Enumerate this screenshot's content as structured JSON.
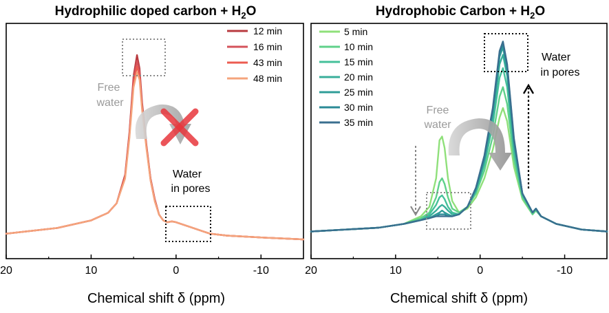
{
  "chart_data": [
    {
      "type": "line",
      "title_main": "Hydrophilic doped carbon + H",
      "title_sub": "2",
      "title_tail": "O",
      "xlabel": "Chemical shift δ (ppm)",
      "xlim": [
        20,
        -15
      ],
      "xticks": [
        20,
        10,
        0,
        -10
      ],
      "xtick_labels": [
        "20",
        "10",
        "0",
        "-10"
      ],
      "ylim": [
        0,
        1.05
      ],
      "series": [
        {
          "name": "12 min",
          "color": "#b83a3f",
          "x": [
            20,
            14,
            10,
            8,
            7,
            6,
            5.5,
            5,
            4.6,
            4.3,
            4.0,
            3.5,
            3,
            2.5,
            2,
            1.5,
            1,
            0.5,
            0,
            -1,
            -2,
            -3,
            -4,
            -6,
            -10,
            -15
          ],
          "y": [
            0.03,
            0.06,
            0.1,
            0.14,
            0.19,
            0.34,
            0.56,
            0.86,
            0.97,
            0.9,
            0.72,
            0.5,
            0.32,
            0.21,
            0.13,
            0.1,
            0.09,
            0.095,
            0.09,
            0.075,
            0.06,
            0.045,
            0.03,
            0.02,
            0.01,
            0.0
          ]
        },
        {
          "name": "16 min",
          "color": "#d4525a",
          "x": [
            20,
            14,
            10,
            8,
            7,
            6,
            5.5,
            5,
            4.6,
            4.3,
            4.0,
            3.5,
            3,
            2.5,
            2,
            1.5,
            1,
            0.5,
            0,
            -1,
            -2,
            -3,
            -4,
            -6,
            -10,
            -15
          ],
          "y": [
            0.03,
            0.06,
            0.1,
            0.14,
            0.19,
            0.33,
            0.55,
            0.84,
            0.94,
            0.88,
            0.7,
            0.49,
            0.32,
            0.21,
            0.13,
            0.1,
            0.09,
            0.095,
            0.09,
            0.075,
            0.06,
            0.045,
            0.03,
            0.02,
            0.01,
            0.0
          ]
        },
        {
          "name": "43 min",
          "color": "#ec5c50",
          "x": [
            20,
            14,
            10,
            8,
            7,
            6,
            5.5,
            5,
            4.6,
            4.3,
            4.0,
            3.5,
            3,
            2.5,
            2,
            1.5,
            1,
            0.5,
            0,
            -1,
            -2,
            -3,
            -4,
            -6,
            -10,
            -15
          ],
          "y": [
            0.03,
            0.06,
            0.1,
            0.14,
            0.19,
            0.33,
            0.54,
            0.82,
            0.91,
            0.86,
            0.69,
            0.49,
            0.31,
            0.2,
            0.13,
            0.1,
            0.09,
            0.095,
            0.09,
            0.075,
            0.06,
            0.045,
            0.03,
            0.02,
            0.01,
            0.0
          ]
        },
        {
          "name": "48 min",
          "color": "#f4a47c",
          "x": [
            20,
            14,
            10,
            8,
            7,
            6,
            5.5,
            5,
            4.6,
            4.3,
            4.0,
            3.5,
            3,
            2.5,
            2,
            1.5,
            1,
            0.5,
            0,
            -1,
            -2,
            -3,
            -4,
            -6,
            -10,
            -15
          ],
          "y": [
            0.03,
            0.06,
            0.1,
            0.14,
            0.19,
            0.32,
            0.53,
            0.8,
            0.88,
            0.84,
            0.68,
            0.48,
            0.31,
            0.2,
            0.13,
            0.1,
            0.09,
            0.095,
            0.09,
            0.075,
            0.06,
            0.045,
            0.03,
            0.02,
            0.01,
            0.0
          ]
        }
      ],
      "annotations": {
        "free_water": [
          "Free",
          "water"
        ],
        "water_in_pores": [
          "Water",
          "in pores"
        ]
      }
    },
    {
      "type": "line",
      "title_main": "Hydrophobic Carbon + H",
      "title_sub": "2",
      "title_tail": "O",
      "xlabel": "Chemical shift δ (ppm)",
      "xlim": [
        20,
        -15
      ],
      "xticks": [
        20,
        10,
        0,
        -10
      ],
      "xtick_labels": [
        "20",
        "10",
        "0",
        "-10"
      ],
      "ylim": [
        0,
        1.05
      ],
      "series": [
        {
          "name": "5 min",
          "color": "#8fe07a",
          "x": [
            20,
            12,
            9,
            7,
            6,
            5.2,
            4.8,
            4.5,
            4.2,
            3.8,
            3.3,
            2.5,
            1.5,
            0.5,
            -0.5,
            -1.5,
            -2.3,
            -2.7,
            -3.2,
            -4.0,
            -5.0,
            -6.2,
            -6.6,
            -7.2,
            -9,
            -12,
            -15
          ],
          "y": [
            0.02,
            0.04,
            0.06,
            0.1,
            0.15,
            0.3,
            0.5,
            0.52,
            0.46,
            0.3,
            0.18,
            0.12,
            0.14,
            0.2,
            0.3,
            0.45,
            0.62,
            0.67,
            0.6,
            0.36,
            0.19,
            0.11,
            0.13,
            0.1,
            0.06,
            0.03,
            0.02
          ]
        },
        {
          "name": "10 min",
          "color": "#5fd18a",
          "x": [
            20,
            12,
            9,
            7,
            6,
            5.2,
            4.8,
            4.5,
            4.2,
            3.8,
            3.3,
            2.5,
            1.5,
            0.5,
            -0.5,
            -1.5,
            -2.3,
            -2.7,
            -3.2,
            -4.0,
            -5.0,
            -6.2,
            -6.6,
            -7.2,
            -9,
            -12,
            -15
          ],
          "y": [
            0.02,
            0.04,
            0.06,
            0.09,
            0.12,
            0.2,
            0.28,
            0.3,
            0.27,
            0.2,
            0.14,
            0.12,
            0.15,
            0.22,
            0.34,
            0.52,
            0.73,
            0.78,
            0.69,
            0.4,
            0.2,
            0.11,
            0.13,
            0.1,
            0.06,
            0.03,
            0.02
          ]
        },
        {
          "name": "15 min",
          "color": "#44c09a",
          "x": [
            20,
            12,
            9,
            7,
            6,
            5.2,
            4.8,
            4.5,
            4.2,
            3.8,
            3.3,
            2.5,
            1.5,
            0.5,
            -0.5,
            -1.5,
            -2.3,
            -2.7,
            -3.2,
            -4.0,
            -5.0,
            -6.2,
            -6.6,
            -7.2,
            -9,
            -12,
            -15
          ],
          "y": [
            0.02,
            0.04,
            0.06,
            0.08,
            0.11,
            0.16,
            0.2,
            0.21,
            0.19,
            0.15,
            0.12,
            0.11,
            0.15,
            0.23,
            0.37,
            0.58,
            0.83,
            0.88,
            0.78,
            0.44,
            0.21,
            0.12,
            0.14,
            0.1,
            0.06,
            0.03,
            0.02
          ]
        },
        {
          "name": "20 min",
          "color": "#38ae9a",
          "x": [
            20,
            12,
            9,
            7,
            6,
            5.2,
            4.8,
            4.5,
            4.2,
            3.8,
            3.3,
            2.5,
            1.5,
            0.5,
            -0.5,
            -1.5,
            -2.3,
            -2.7,
            -3.2,
            -4.0,
            -5.0,
            -6.2,
            -6.6,
            -7.2,
            -9,
            -12,
            -15
          ],
          "y": [
            0.02,
            0.04,
            0.06,
            0.08,
            0.1,
            0.13,
            0.15,
            0.16,
            0.15,
            0.13,
            0.11,
            0.11,
            0.15,
            0.24,
            0.39,
            0.62,
            0.9,
            0.95,
            0.84,
            0.47,
            0.22,
            0.12,
            0.14,
            0.1,
            0.06,
            0.03,
            0.02
          ]
        },
        {
          "name": "25 min",
          "color": "#2f9d98",
          "x": [
            20,
            12,
            9,
            7,
            6,
            5.2,
            4.8,
            4.5,
            4.2,
            3.8,
            3.3,
            2.5,
            1.5,
            0.5,
            -0.5,
            -1.5,
            -2.3,
            -2.7,
            -3.2,
            -4.0,
            -5.0,
            -6.2,
            -6.6,
            -7.2,
            -9,
            -12,
            -15
          ],
          "y": [
            0.02,
            0.04,
            0.06,
            0.08,
            0.09,
            0.11,
            0.12,
            0.13,
            0.12,
            0.11,
            0.1,
            0.11,
            0.15,
            0.24,
            0.4,
            0.65,
            0.94,
            0.99,
            0.87,
            0.49,
            0.22,
            0.12,
            0.14,
            0.1,
            0.06,
            0.03,
            0.02
          ]
        },
        {
          "name": "30 min",
          "color": "#2a8a96",
          "x": [
            20,
            12,
            9,
            7,
            6,
            5.2,
            4.8,
            4.5,
            4.2,
            3.8,
            3.3,
            2.5,
            1.5,
            0.5,
            -0.5,
            -1.5,
            -2.3,
            -2.7,
            -3.2,
            -4.0,
            -5.0,
            -6.2,
            -6.6,
            -7.2,
            -9,
            -12,
            -15
          ],
          "y": [
            0.02,
            0.04,
            0.06,
            0.08,
            0.09,
            0.1,
            0.11,
            0.11,
            0.11,
            0.1,
            0.1,
            0.11,
            0.15,
            0.25,
            0.41,
            0.66,
            0.96,
            1.01,
            0.89,
            0.5,
            0.22,
            0.12,
            0.14,
            0.1,
            0.06,
            0.03,
            0.02
          ]
        },
        {
          "name": "35 min",
          "color": "#3a6f8f",
          "x": [
            20,
            12,
            9,
            7,
            6,
            5.2,
            4.8,
            4.5,
            4.2,
            3.8,
            3.3,
            2.5,
            1.5,
            0.5,
            -0.5,
            -1.5,
            -2.3,
            -2.7,
            -3.2,
            -4.0,
            -5.0,
            -6.2,
            -6.6,
            -7.2,
            -9,
            -12,
            -15
          ],
          "y": [
            0.02,
            0.04,
            0.06,
            0.08,
            0.09,
            0.1,
            0.1,
            0.1,
            0.1,
            0.1,
            0.1,
            0.11,
            0.15,
            0.25,
            0.42,
            0.67,
            0.97,
            1.02,
            0.9,
            0.51,
            0.22,
            0.12,
            0.14,
            0.1,
            0.06,
            0.03,
            0.02
          ]
        }
      ],
      "annotations": {
        "free_water": [
          "Free",
          "water"
        ],
        "water_in_pores": [
          "Water",
          "in pores"
        ]
      }
    }
  ],
  "colors": {
    "cross": "#e8363c",
    "arrow_gray": "#bdbdbd",
    "annot_gray": "#9a9a9a"
  }
}
